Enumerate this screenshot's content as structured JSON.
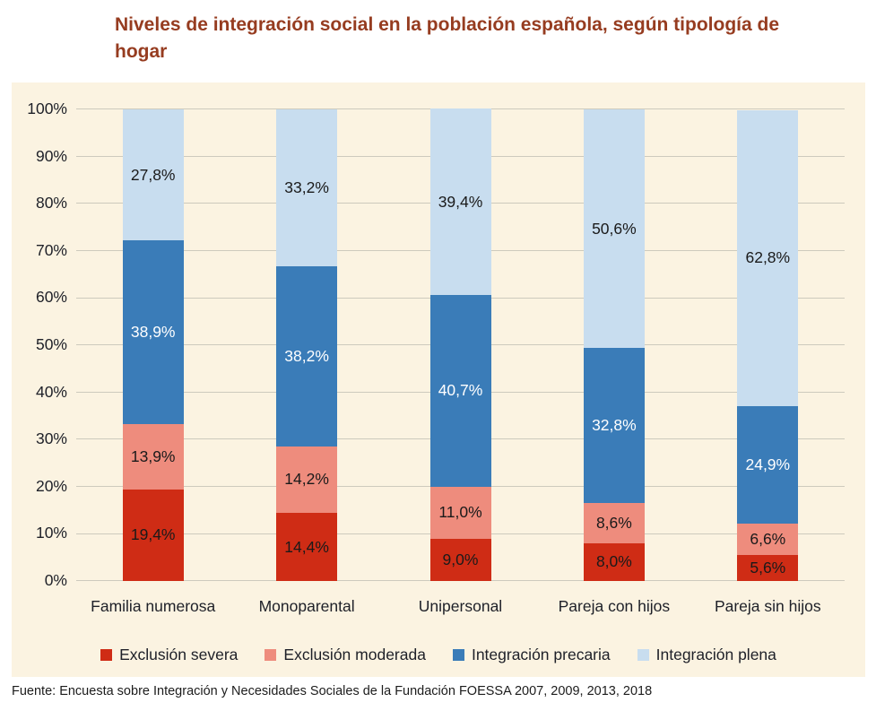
{
  "page": {
    "title": "Niveles de integración social en la población española, según tipología de hogar",
    "title_lines": [
      "Niveles de integración social en la población española, según tipología de",
      "hogar"
    ],
    "source": "Fuente: Encuesta sobre Integración y Necesidades Sociales de la Fundación FOESSA 2007, 2009, 2013, 2018"
  },
  "colors": {
    "title": "#963c20",
    "panel_bg": "#fbf3e1",
    "gridline": "#cdcabd",
    "axis_text": "#1e2028",
    "label_dark": "#1a1a1a",
    "label_light": "#ffffff"
  },
  "chart_data": {
    "type": "bar",
    "stacked": true,
    "unit": "percent",
    "grid": true,
    "legend_position": "bottom",
    "title": "Niveles de integración social en la población española, según tipología de hogar",
    "xlabel": "",
    "ylabel": "",
    "categories": [
      "Familia numerosa",
      "Monoparental",
      "Unipersonal",
      "Pareja con hijos",
      "Pareja sin hijos"
    ],
    "y_axis": {
      "min": 0,
      "max": 100,
      "step": 10,
      "ticks": [
        "0%",
        "10%",
        "20%",
        "30%",
        "40%",
        "50%",
        "60%",
        "70%",
        "80%",
        "90%",
        "100%"
      ]
    },
    "series": [
      {
        "name": "Exclusión severa",
        "color": "#cf2c15",
        "label_color": "#1a1a1a",
        "values": [
          19.4,
          14.4,
          9.0,
          8.0,
          5.6
        ],
        "labels": [
          "19,4%",
          "14,4%",
          "9,0%",
          "8,0%",
          "5,6%"
        ]
      },
      {
        "name": "Exclusión moderada",
        "color": "#ee8c7d",
        "label_color": "#1a1a1a",
        "values": [
          13.9,
          14.2,
          11.0,
          8.6,
          6.6
        ],
        "labels": [
          "13,9%",
          "14,2%",
          "11,0%",
          "8,6%",
          "6,6%"
        ]
      },
      {
        "name": "Integración precaria",
        "color": "#3a7cb8",
        "label_color": "#ffffff",
        "values": [
          38.9,
          38.2,
          40.7,
          32.8,
          24.9
        ],
        "labels": [
          "38,9%",
          "38,2%",
          "40,7%",
          "32,8%",
          "24,9%"
        ]
      },
      {
        "name": "Integración plena",
        "color": "#c8ddef",
        "label_color": "#1a1a1a",
        "values": [
          27.8,
          33.2,
          39.4,
          50.6,
          62.8
        ],
        "labels": [
          "27,8%",
          "33,2%",
          "39,4%",
          "50,6%",
          "62,8%"
        ]
      }
    ]
  }
}
